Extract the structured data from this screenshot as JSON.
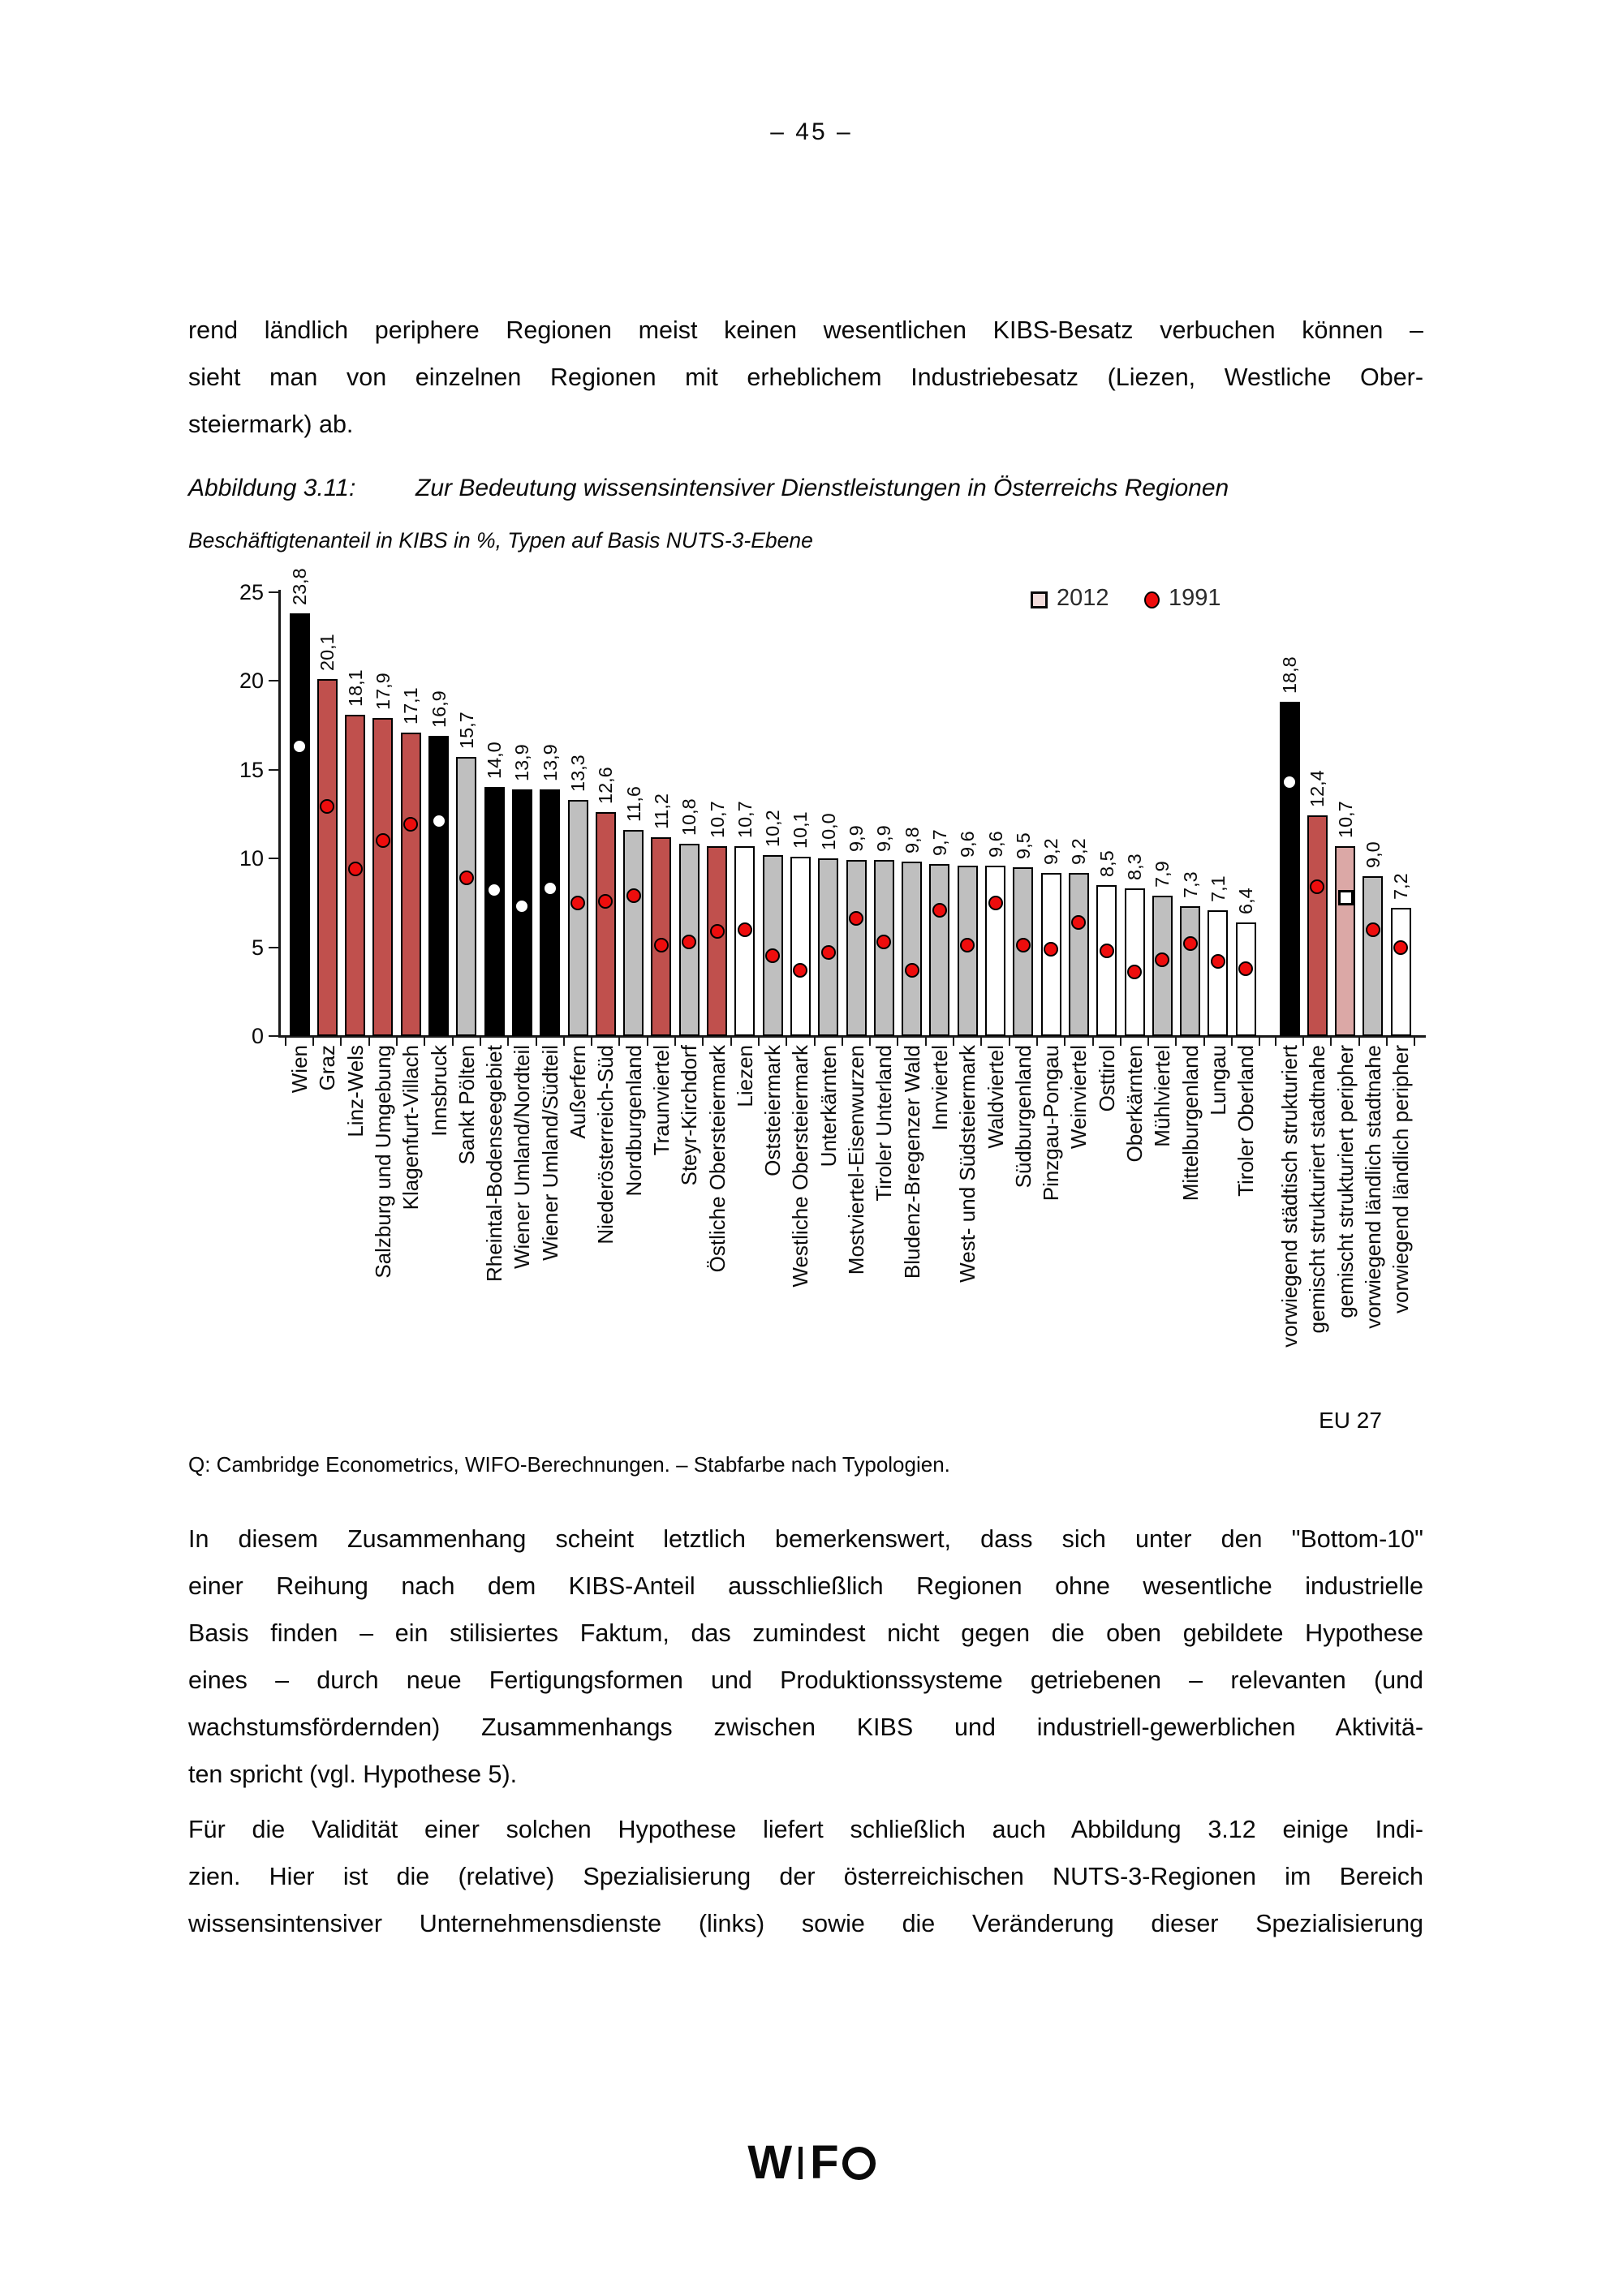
{
  "page": {
    "number": "– 45 –"
  },
  "paragraphs": {
    "p1_lines": [
      "rend ländlich periphere Regionen meist keinen wesentlichen KIBS-Besatz verbuchen können –",
      "sieht man von einzelnen Regionen mit erheblichem Industriebesatz (Liezen, Westliche Ober-",
      "steiermark) ab."
    ],
    "p2_lines": [
      "In diesem Zusammenhang scheint letztlich bemerkenswert, dass sich unter den \"Bottom-10\"",
      "einer Reihung nach dem KIBS-Anteil ausschließlich Regionen ohne wesentliche industrielle",
      "Basis finden – ein stilisiertes Faktum, das zumindest nicht gegen die oben gebildete Hypothese",
      "eines – durch neue Fertigungsformen und Produktionssysteme getriebenen – relevanten (und",
      "wachstumsfördernden) Zusammenhangs zwischen KIBS und industriell-gewerblichen Aktivitä-",
      "ten spricht (vgl. Hypothese 5)."
    ],
    "p3_lines": [
      "Für die Validität einer solchen Hypothese liefert schließlich auch Abbildung 3.12 einige Indi-",
      "zien. Hier ist die (relative) Spezialisierung der österreichischen NUTS-3-Regionen im Bereich",
      "wissensintensiver Unternehmensdienste (links) sowie die Veränderung dieser Spezialisierung"
    ]
  },
  "figure": {
    "caption_label": "Abbildung 3.11:",
    "caption_title": "Zur Bedeutung wissensintensiver Dienstleistungen in Österreichs Regionen",
    "subtitle": "Beschäftigtenanteil in KIBS in %, Typen auf Basis NUTS-3-Ebene",
    "source": "Q: Cambridge Econometrics, WIFO-Berechnungen. – Stabfarbe nach Typologien."
  },
  "logo": {
    "w": "W",
    "f": "F"
  },
  "chart_data": {
    "type": "bar",
    "title": "Beschäftigtenanteil in KIBS in %, Typen auf Basis NUTS-3-Ebene",
    "xlabel": "",
    "ylabel": "",
    "ylim": [
      0,
      25
    ],
    "y_ticks": [
      0,
      5,
      10,
      15,
      20,
      25
    ],
    "grid": false,
    "legend_position": "top-right",
    "legend": [
      {
        "label": "2012",
        "marker": "square"
      },
      {
        "label": "1991",
        "marker": "circle"
      }
    ],
    "group_label": "EU 27",
    "colors": {
      "black": "#000000",
      "darkred": "#c0504d",
      "gray": "#bfbfbf",
      "white": "#ffffff",
      "pink": "#dba8a6",
      "marker_red": "#ee0d0d",
      "marker_white": "#ffffff",
      "legend_square_fill": "#f2dcdb"
    },
    "bars": [
      {
        "label": "Wien",
        "value": 23.8,
        "value_label": "23,8",
        "color": "black",
        "marker_shape": "circle",
        "marker_fill": "white",
        "marker_value": 16.3,
        "group": "regions"
      },
      {
        "label": "Graz",
        "value": 20.1,
        "value_label": "20,1",
        "color": "darkred",
        "marker_shape": "circle",
        "marker_fill": "red",
        "marker_value": 12.9,
        "group": "regions"
      },
      {
        "label": "Linz-Wels",
        "value": 18.1,
        "value_label": "18,1",
        "color": "darkred",
        "marker_shape": "circle",
        "marker_fill": "red",
        "marker_value": 9.4,
        "group": "regions"
      },
      {
        "label": "Salzburg und Umgebung",
        "value": 17.9,
        "value_label": "17,9",
        "color": "darkred",
        "marker_shape": "circle",
        "marker_fill": "red",
        "marker_value": 11.0,
        "group": "regions"
      },
      {
        "label": "Klagenfurt-Villach",
        "value": 17.1,
        "value_label": "17,1",
        "color": "darkred",
        "marker_shape": "circle",
        "marker_fill": "red",
        "marker_value": 11.9,
        "group": "regions"
      },
      {
        "label": "Innsbruck",
        "value": 16.9,
        "value_label": "16,9",
        "color": "black",
        "marker_shape": "circle",
        "marker_fill": "white",
        "marker_value": 12.1,
        "group": "regions"
      },
      {
        "label": "Sankt Pölten",
        "value": 15.7,
        "value_label": "15,7",
        "color": "gray",
        "marker_shape": "circle",
        "marker_fill": "red",
        "marker_value": 8.9,
        "group": "regions"
      },
      {
        "label": "Rheintal-Bodenseegebiet",
        "value": 14.0,
        "value_label": "14,0",
        "color": "black",
        "marker_shape": "circle",
        "marker_fill": "white",
        "marker_value": 8.2,
        "group": "regions"
      },
      {
        "label": "Wiener Umland/Nordteil",
        "value": 13.9,
        "value_label": "13,9",
        "color": "black",
        "marker_shape": "circle",
        "marker_fill": "white",
        "marker_value": 7.3,
        "group": "regions"
      },
      {
        "label": "Wiener Umland/Südteil",
        "value": 13.9,
        "value_label": "13,9",
        "color": "black",
        "marker_shape": "circle",
        "marker_fill": "white",
        "marker_value": 8.3,
        "group": "regions"
      },
      {
        "label": "Außerfern",
        "value": 13.3,
        "value_label": "13,3",
        "color": "gray",
        "marker_shape": "circle",
        "marker_fill": "red",
        "marker_value": 7.5,
        "group": "regions"
      },
      {
        "label": "Niederösterreich-Süd",
        "value": 12.6,
        "value_label": "12,6",
        "color": "darkred",
        "marker_shape": "circle",
        "marker_fill": "red",
        "marker_value": 7.6,
        "group": "regions"
      },
      {
        "label": "Nordburgenland",
        "value": 11.6,
        "value_label": "11,6",
        "color": "gray",
        "marker_shape": "circle",
        "marker_fill": "red",
        "marker_value": 7.9,
        "group": "regions"
      },
      {
        "label": "Traunviertel",
        "value": 11.2,
        "value_label": "11,2",
        "color": "darkred",
        "marker_shape": "circle",
        "marker_fill": "red",
        "marker_value": 5.1,
        "group": "regions"
      },
      {
        "label": "Steyr-Kirchdorf",
        "value": 10.8,
        "value_label": "10,8",
        "color": "gray",
        "marker_shape": "circle",
        "marker_fill": "red",
        "marker_value": 5.3,
        "group": "regions"
      },
      {
        "label": "Östliche Obersteiermark",
        "value": 10.7,
        "value_label": "10,7",
        "color": "darkred",
        "marker_shape": "circle",
        "marker_fill": "red",
        "marker_value": 5.9,
        "group": "regions"
      },
      {
        "label": "Liezen",
        "value": 10.7,
        "value_label": "10,7",
        "color": "white",
        "marker_shape": "circle",
        "marker_fill": "red",
        "marker_value": 6.0,
        "group": "regions"
      },
      {
        "label": "Oststeiermark",
        "value": 10.2,
        "value_label": "10,2",
        "color": "gray",
        "marker_shape": "circle",
        "marker_fill": "red",
        "marker_value": 4.5,
        "group": "regions"
      },
      {
        "label": "Westliche Obersteiermark",
        "value": 10.1,
        "value_label": "10,1",
        "color": "white",
        "marker_shape": "circle",
        "marker_fill": "red",
        "marker_value": 3.7,
        "group": "regions"
      },
      {
        "label": "Unterkärnten",
        "value": 10.0,
        "value_label": "10,0",
        "color": "gray",
        "marker_shape": "circle",
        "marker_fill": "red",
        "marker_value": 4.7,
        "group": "regions"
      },
      {
        "label": "Mostviertel-Eisenwurzen",
        "value": 9.9,
        "value_label": "9,9",
        "color": "gray",
        "marker_shape": "circle",
        "marker_fill": "red",
        "marker_value": 6.6,
        "group": "regions"
      },
      {
        "label": "Tiroler Unterland",
        "value": 9.9,
        "value_label": "9,9",
        "color": "gray",
        "marker_shape": "circle",
        "marker_fill": "red",
        "marker_value": 5.3,
        "group": "regions"
      },
      {
        "label": "Bludenz-Bregenzer Wald",
        "value": 9.8,
        "value_label": "9,8",
        "color": "gray",
        "marker_shape": "circle",
        "marker_fill": "red",
        "marker_value": 3.7,
        "group": "regions"
      },
      {
        "label": "Innviertel",
        "value": 9.7,
        "value_label": "9,7",
        "color": "gray",
        "marker_shape": "circle",
        "marker_fill": "red",
        "marker_value": 7.1,
        "group": "regions"
      },
      {
        "label": "West- und Südsteiermark",
        "value": 9.6,
        "value_label": "9,6",
        "color": "gray",
        "marker_shape": "circle",
        "marker_fill": "red",
        "marker_value": 5.1,
        "group": "regions"
      },
      {
        "label": "Waldviertel",
        "value": 9.6,
        "value_label": "9,6",
        "color": "white",
        "marker_shape": "circle",
        "marker_fill": "red",
        "marker_value": 7.5,
        "group": "regions"
      },
      {
        "label": "Südburgenland",
        "value": 9.5,
        "value_label": "9,5",
        "color": "gray",
        "marker_shape": "circle",
        "marker_fill": "red",
        "marker_value": 5.1,
        "group": "regions"
      },
      {
        "label": "Pinzgau-Pongau",
        "value": 9.2,
        "value_label": "9,2",
        "color": "white",
        "marker_shape": "circle",
        "marker_fill": "red",
        "marker_value": 4.9,
        "group": "regions"
      },
      {
        "label": "Weinviertel",
        "value": 9.2,
        "value_label": "9,2",
        "color": "gray",
        "marker_shape": "circle",
        "marker_fill": "red",
        "marker_value": 6.4,
        "group": "regions"
      },
      {
        "label": "Osttirol",
        "value": 8.5,
        "value_label": "8,5",
        "color": "white",
        "marker_shape": "circle",
        "marker_fill": "red",
        "marker_value": 4.8,
        "group": "regions"
      },
      {
        "label": "Oberkärnten",
        "value": 8.3,
        "value_label": "8,3",
        "color": "white",
        "marker_shape": "circle",
        "marker_fill": "red",
        "marker_value": 3.6,
        "group": "regions"
      },
      {
        "label": "Mühlviertel",
        "value": 7.9,
        "value_label": "7,9",
        "color": "gray",
        "marker_shape": "circle",
        "marker_fill": "red",
        "marker_value": 4.3,
        "group": "regions"
      },
      {
        "label": "Mittelburgenland",
        "value": 7.3,
        "value_label": "7,3",
        "color": "gray",
        "marker_shape": "circle",
        "marker_fill": "red",
        "marker_value": 5.2,
        "group": "regions"
      },
      {
        "label": "Lungau",
        "value": 7.1,
        "value_label": "7,1",
        "color": "white",
        "marker_shape": "circle",
        "marker_fill": "red",
        "marker_value": 4.2,
        "group": "regions"
      },
      {
        "label": "Tiroler Oberland",
        "value": 6.4,
        "value_label": "6,4",
        "color": "white",
        "marker_shape": "circle",
        "marker_fill": "red",
        "marker_value": 3.8,
        "group": "regions"
      },
      {
        "label": "vorwiegend städtisch strukturiert",
        "value": 18.8,
        "value_label": "18,8",
        "color": "black",
        "marker_shape": "circle",
        "marker_fill": "white",
        "marker_value": 14.3,
        "group": "eu27"
      },
      {
        "label": "gemischt strukturiert stadtnahe",
        "value": 12.4,
        "value_label": "12,4",
        "color": "darkred",
        "marker_shape": "circle",
        "marker_fill": "red",
        "marker_value": 8.4,
        "group": "eu27"
      },
      {
        "label": "gemischt strukturiert peripher",
        "value": 10.7,
        "value_label": "10,7",
        "color": "pink",
        "marker_shape": "square",
        "marker_fill": "white",
        "marker_value": 7.8,
        "group": "eu27"
      },
      {
        "label": "vorwiegend ländlich stadtnahe",
        "value": 9.0,
        "value_label": "9,0",
        "color": "gray",
        "marker_shape": "circle",
        "marker_fill": "red",
        "marker_value": 6.0,
        "group": "eu27"
      },
      {
        "label": "vorwiegend ländlich peripher",
        "value": 7.2,
        "value_label": "7,2",
        "color": "white",
        "marker_shape": "circle",
        "marker_fill": "red",
        "marker_value": 5.0,
        "group": "eu27"
      }
    ]
  }
}
